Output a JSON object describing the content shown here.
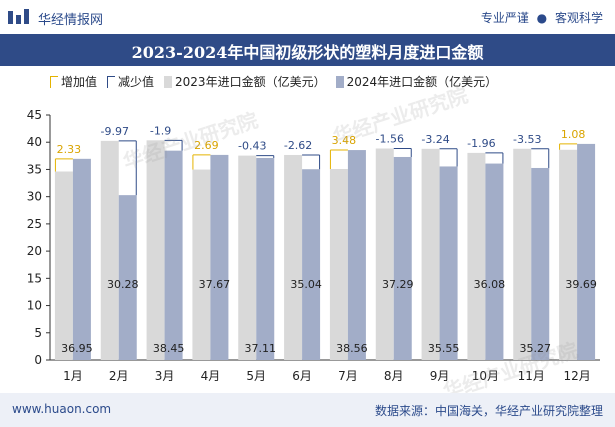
{
  "header": {
    "site_name": "华经情报网",
    "badge_left": "专业严谨",
    "badge_right": "客观科学",
    "title": "2023-2024年中国初级形状的塑料月度进口金额"
  },
  "legend": {
    "increase": "增加值",
    "decrease": "减少值",
    "series_2023": "2023年进口金额（亿美元）",
    "series_2024": "2024年进口金额（亿美元）"
  },
  "colors": {
    "brand": "#2f4b87",
    "bar_2023": "#d9d9d9",
    "bar_2024": "#a2adc8",
    "increase": "#e4b300",
    "decrease": "#2f4b87"
  },
  "footer": {
    "left": "www.huaon.com",
    "right": "数据来源：中国海关，华经产业研究院整理"
  },
  "watermark": "华经产业研究院",
  "chart_data": {
    "type": "bar",
    "categories": [
      "1月",
      "2月",
      "3月",
      "4月",
      "5月",
      "6月",
      "7月",
      "8月",
      "9月",
      "10月",
      "11月",
      "12月"
    ],
    "ylim": [
      0,
      45
    ],
    "yticks": [
      0,
      5,
      10,
      15,
      20,
      25,
      30,
      35,
      40,
      45
    ],
    "grid": false,
    "legend_position": "top-left",
    "series": [
      {
        "name": "2023年进口金额（亿美元）",
        "values": [
          34.62,
          40.25,
          40.35,
          34.98,
          37.54,
          37.66,
          35.08,
          38.85,
          38.79,
          38.04,
          38.8,
          38.61
        ]
      },
      {
        "name": "2024年进口金额（亿美元）",
        "values": [
          36.95,
          30.28,
          38.45,
          37.67,
          37.11,
          35.04,
          38.56,
          37.29,
          35.55,
          36.08,
          35.27,
          39.69
        ]
      }
    ],
    "changes": [
      2.33,
      -9.97,
      -1.9,
      2.69,
      -0.43,
      -2.62,
      3.48,
      -1.56,
      -3.24,
      -1.96,
      -3.53,
      1.08
    ],
    "change_labels": [
      "2.33",
      "-9.97",
      "-1.9",
      "2.69",
      "-0.43",
      "-2.62",
      "3.48",
      "-1.56",
      "-3.24",
      "-1.96",
      "-3.53",
      "1.08"
    ],
    "value_labels_2024": [
      "36.95",
      "30.28",
      "38.45",
      "37.67",
      "37.11",
      "35.04",
      "38.56",
      "37.29",
      "35.55",
      "36.08",
      "35.27",
      "39.69"
    ]
  }
}
